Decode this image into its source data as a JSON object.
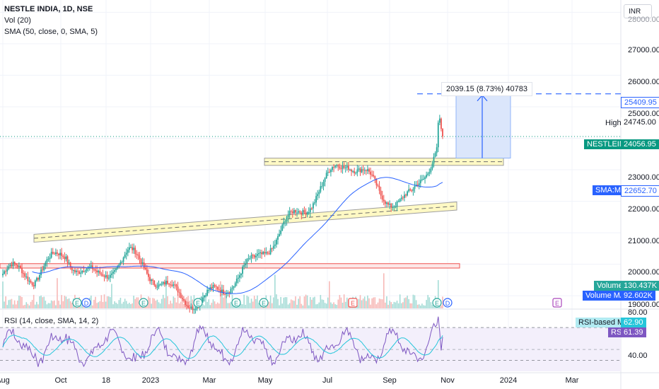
{
  "header": {
    "title": "NESTLE INDIA, 1D, NSE",
    "vol_label": "Vol (20)",
    "sma_label": "SMA (50, close, 0, SMA, 5)",
    "currency": "INR"
  },
  "price_axis": {
    "ticks": [
      "28000.00",
      "27000.00",
      "26000.00",
      "25000.00",
      "23000.00",
      "22000.00",
      "21000.00",
      "20000.00",
      "19000.00"
    ]
  },
  "rsi_axis": {
    "ticks": [
      "80.00",
      "40.00"
    ]
  },
  "date_axis": {
    "ticks": [
      "Aug",
      "Oct",
      "18",
      "2023",
      "Mar",
      "May",
      "Jul",
      "Sep",
      "Nov",
      "2024",
      "Mar"
    ]
  },
  "tags": {
    "measure": "2039.15 (8.73%) 40783",
    "target_price": "25409.95",
    "high_label": "High",
    "high_value": "24745.00",
    "symbol": "NESTLEIND",
    "last_price": "24056.95",
    "sma_label": "SMA:MA",
    "sma_value": "22652.70",
    "volume_label": "Volume",
    "volume_value": "130.437K",
    "volume_ma_label": "Volume MA",
    "volume_ma_value": "92.602K",
    "rsi_title": "RSI (14, close, SMA, 14, 2)",
    "rsi_ma_label": "RSI-based MA",
    "rsi_ma_value": "62.90",
    "rsi_label": "RSI",
    "rsi_value": "61.39"
  },
  "markers": {
    "earnings": "E",
    "dividend": "D"
  },
  "colors": {
    "up": "#26a69a",
    "down": "#ef5350",
    "sma": "#2962ff",
    "rsi": "#7e57c2",
    "rsi_ma": "#26c6da",
    "channel_fill": "#fff9c4",
    "measure_fill": "#dbe6fb",
    "last_price_tag": "#089981"
  },
  "chart_data": {
    "type": "candlestick",
    "symbol": "NESTLEIND",
    "exchange": "NSE",
    "interval": "1D",
    "ylim": [
      18600,
      28300
    ],
    "rsi_ylim": [
      30,
      85
    ],
    "sma_period": 50,
    "monthly_close_path": [
      {
        "date": "2022-08",
        "close": 19700
      },
      {
        "date": "2022-09",
        "close": 19300
      },
      {
        "date": "2022-10",
        "close": 20500
      },
      {
        "date": "2022-11",
        "close": 19800
      },
      {
        "date": "2022-12",
        "close": 20000
      },
      {
        "date": "2023-01",
        "close": 19300
      },
      {
        "date": "2023-02",
        "close": 19200
      },
      {
        "date": "2023-03",
        "close": 19100
      },
      {
        "date": "2023-04",
        "close": 19700
      },
      {
        "date": "2023-05",
        "close": 21500
      },
      {
        "date": "2023-06",
        "close": 22500
      },
      {
        "date": "2023-07",
        "close": 23000
      },
      {
        "date": "2023-08",
        "close": 22200
      },
      {
        "date": "2023-09",
        "close": 22400
      },
      {
        "date": "2023-10",
        "close": 24056.95
      }
    ],
    "last": 24056.95,
    "high": 24745.0,
    "target": 25409.95,
    "measure": {
      "change": 2039.15,
      "percent": 8.73,
      "volume": 40783
    },
    "sma_last": 22652.7,
    "volume_last": "130.437K",
    "volume_ma_last": "92.602K",
    "rsi_last": 61.39,
    "rsi_ma_last": 62.9,
    "grid": true
  }
}
